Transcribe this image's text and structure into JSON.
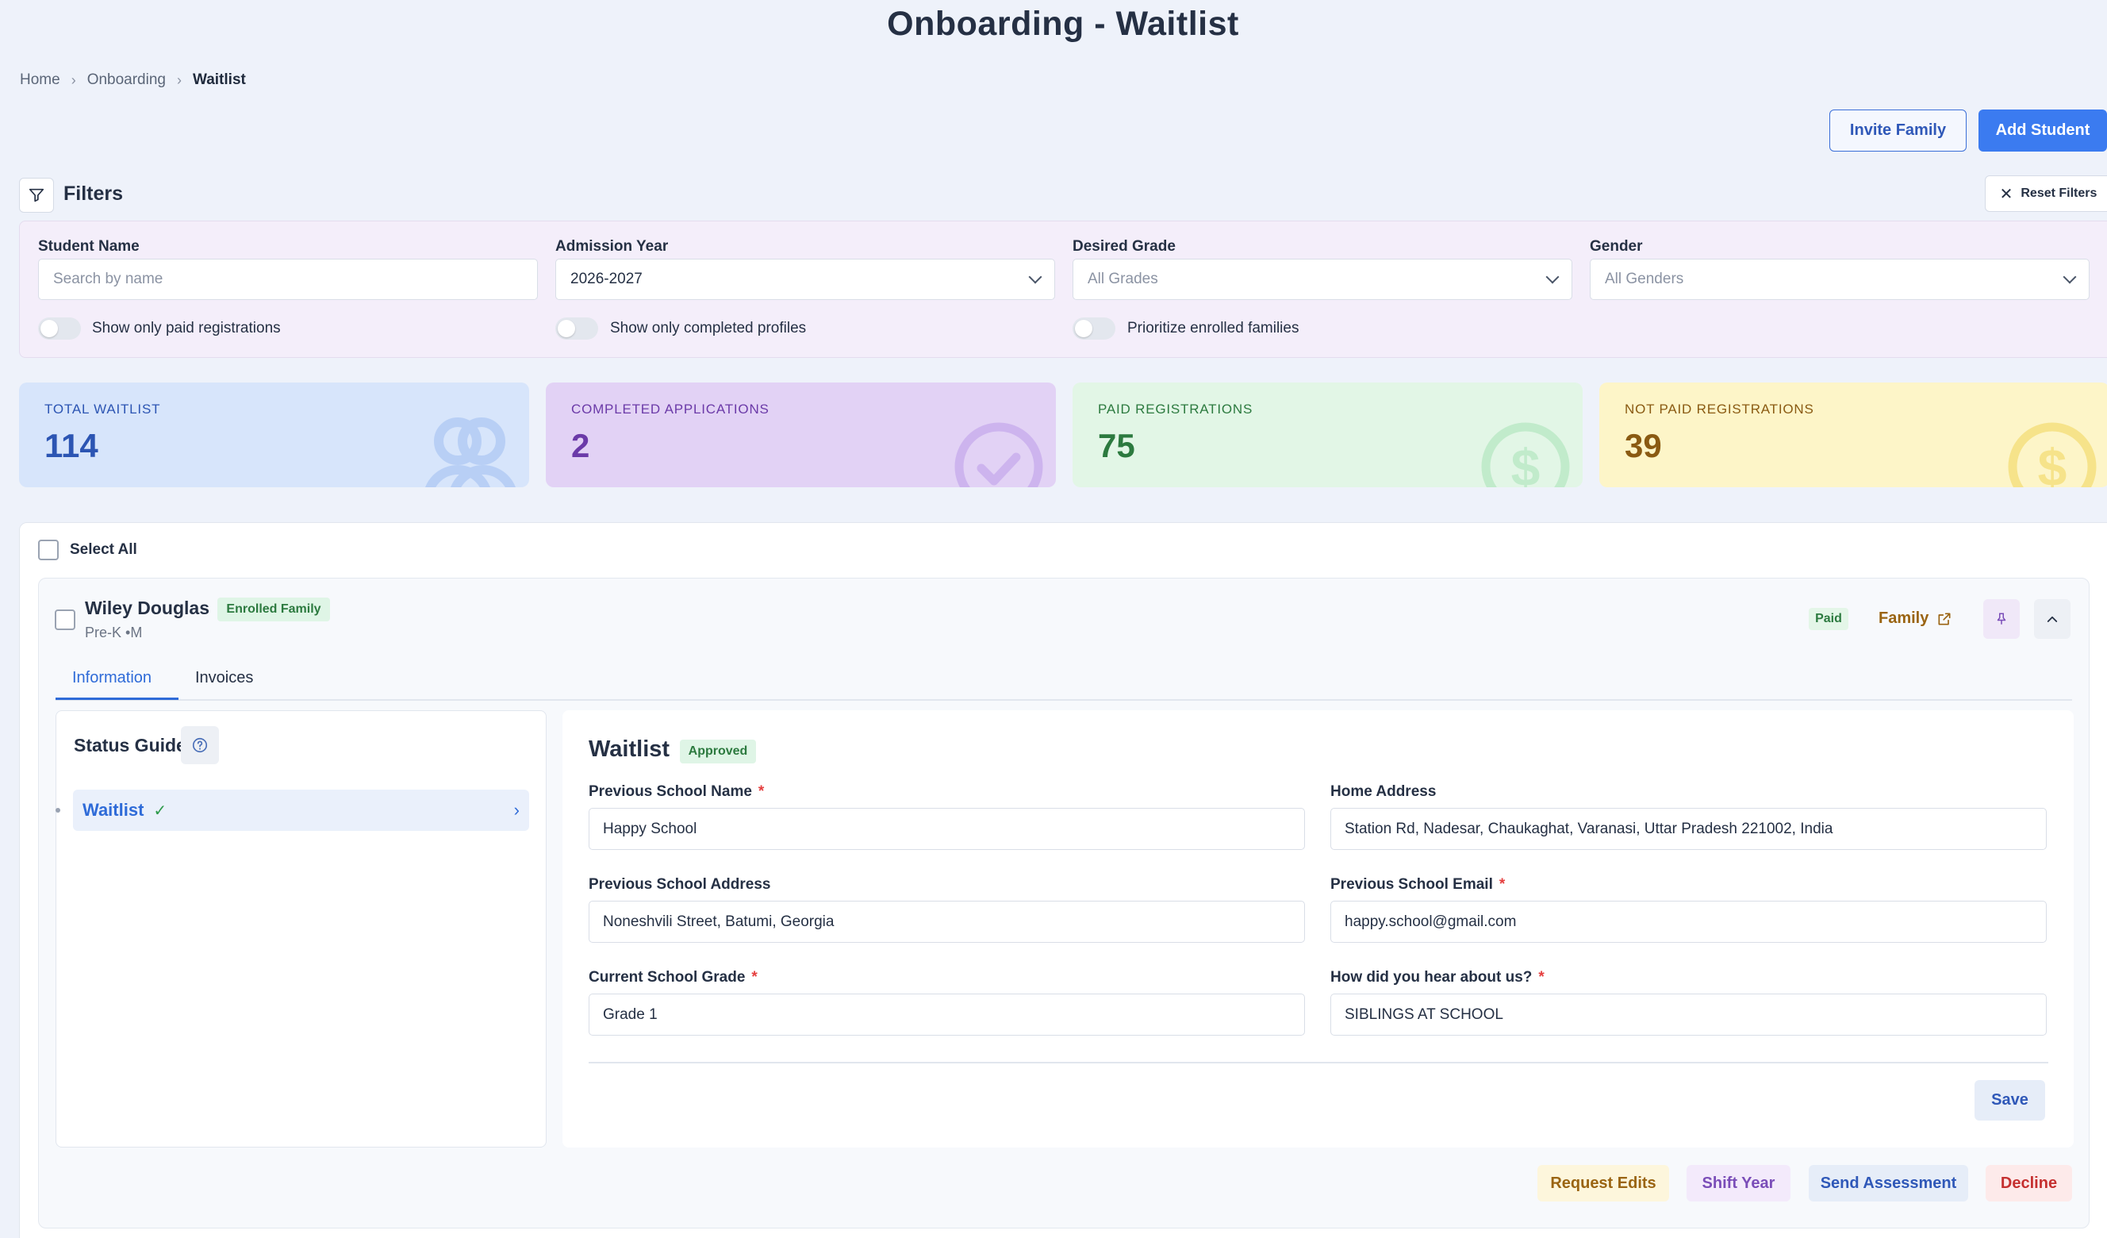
{
  "page": {
    "title": "Onboarding - Waitlist"
  },
  "breadcrumb": [
    "Home",
    "Onboarding",
    "Waitlist"
  ],
  "actions": {
    "invite_family": "Invite Family",
    "add_student": "Add Student"
  },
  "filters": {
    "title": "Filters",
    "reset_label": "Reset Filters",
    "student_name": {
      "label": "Student Name",
      "placeholder": "Search by name"
    },
    "admission_year": {
      "label": "Admission Year",
      "value": "2026-2027"
    },
    "desired_grade": {
      "label": "Desired Grade",
      "value": "All Grades"
    },
    "gender": {
      "label": "Gender",
      "value": "All Genders"
    },
    "toggles": [
      "Show only paid registrations",
      "Show only completed profiles",
      "Prioritize enrolled families"
    ]
  },
  "stats": [
    {
      "label": "TOTAL WAITLIST",
      "value": "114",
      "icon": "users-icon",
      "bg": "#d7e5fb",
      "fg": "#2c55b3",
      "icon_color": "#b8cff5"
    },
    {
      "label": "COMPLETED APPLICATIONS",
      "value": "2",
      "icon": "check-circle-icon",
      "bg": "#e2d2f5",
      "fg": "#6b3aa8",
      "icon_color": "#cdb4ee"
    },
    {
      "label": "PAID REGISTRATIONS",
      "value": "75",
      "icon": "dollar-circle-icon",
      "bg": "#e2f6e6",
      "fg": "#2c7a3f",
      "icon_color": "#c1ebcb"
    },
    {
      "label": "NOT PAID REGISTRATIONS",
      "value": "39",
      "icon": "dollar-circle-icon",
      "bg": "#fdf5c8",
      "fg": "#8a5a12",
      "icon_color": "#f6e38a"
    }
  ],
  "list": {
    "select_all": "Select All"
  },
  "student": {
    "name": "Wiley Douglas",
    "badge": "Enrolled Family",
    "meta": "Pre-K •M",
    "paid_badge": "Paid",
    "family_link": "Family",
    "tabs": [
      "Information",
      "Invoices"
    ],
    "status_guide": {
      "title": "Status Guide",
      "items": [
        {
          "label": "Waitlist",
          "check": "✓"
        }
      ]
    },
    "form": {
      "title": "Waitlist",
      "status": "Approved",
      "fields": {
        "prev_school_name": {
          "label": "Previous School Name",
          "value": "Happy School"
        },
        "home_address": {
          "label": "Home Address",
          "value": "Station Rd, Nadesar, Chaukaghat, Varanasi, Uttar Pradesh 221002, India"
        },
        "prev_school_address": {
          "label": "Previous School Address",
          "value": "Noneshvili Street, Batumi, Georgia"
        },
        "prev_school_email": {
          "label": "Previous School Email",
          "value": "happy.school@gmail.com"
        },
        "current_grade": {
          "label": "Current School Grade",
          "value": "Grade 1"
        },
        "hear_about": {
          "label": "How did you hear about us?",
          "value": "SIBLINGS AT SCHOOL"
        }
      },
      "save": "Save"
    },
    "footer_actions": {
      "request_edits": "Request Edits",
      "shift_year": "Shift Year",
      "send_assessment": "Send Assessment",
      "decline": "Decline"
    }
  }
}
